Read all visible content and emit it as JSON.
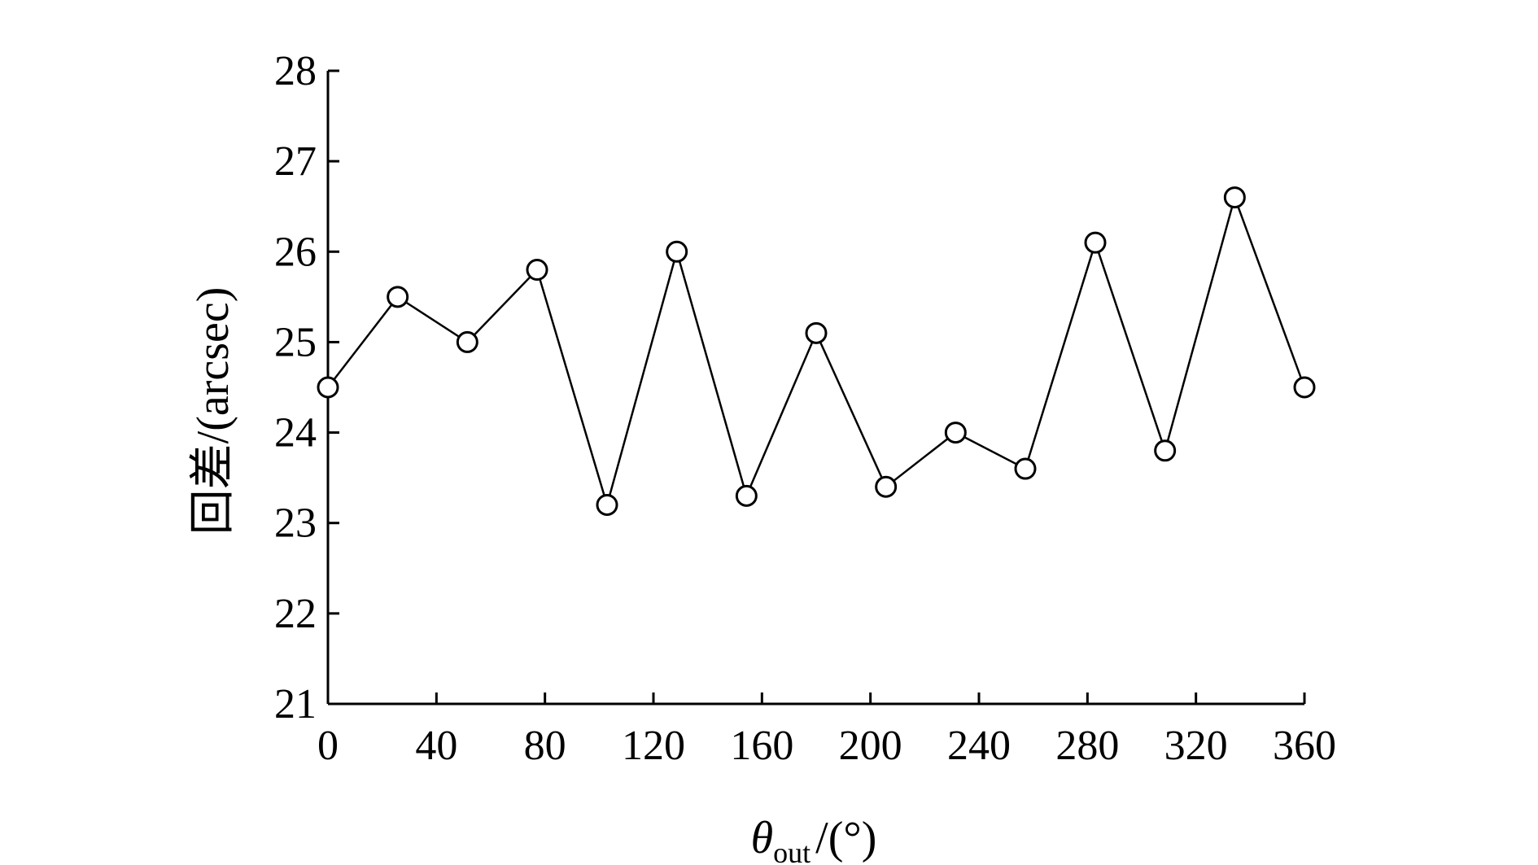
{
  "chart_data": {
    "type": "line",
    "xlabel_symbol": "θ",
    "xlabel_subscript": "out",
    "xlabel_unit": "/(°)",
    "ylabel": "回差/(arcsec)",
    "xlim": [
      0,
      360
    ],
    "ylim": [
      21,
      28
    ],
    "xticks": [
      0,
      40,
      80,
      120,
      160,
      200,
      240,
      280,
      320,
      360
    ],
    "yticks": [
      21,
      22,
      23,
      24,
      25,
      26,
      27,
      28
    ],
    "grid": false,
    "marker": "open-circle",
    "series": [
      {
        "x": [
          0,
          25.7,
          51.4,
          77.1,
          102.9,
          128.6,
          154.3,
          180,
          205.7,
          231.4,
          257.1,
          282.9,
          308.6,
          334.3,
          360
        ],
        "values": [
          24.5,
          25.5,
          25.0,
          25.8,
          23.2,
          26.0,
          23.3,
          25.1,
          23.4,
          24.0,
          23.6,
          26.1,
          23.8,
          26.6,
          24.5
        ]
      }
    ]
  }
}
